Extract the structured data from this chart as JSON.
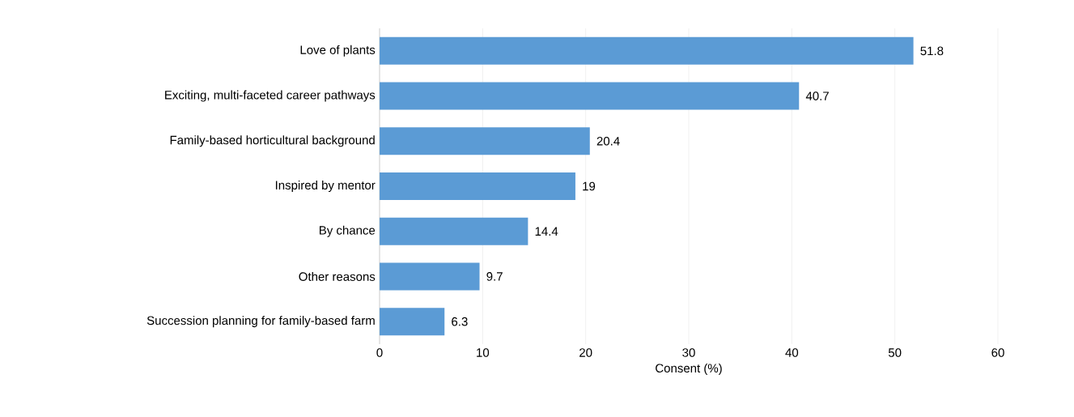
{
  "chart_data": {
    "type": "bar",
    "orientation": "horizontal",
    "xlabel": "Consent (%)",
    "categories": [
      "Love of plants",
      "Exciting, multi-faceted career pathways",
      "Family-based horticultural background",
      "Inspired by mentor",
      "By chance",
      "Other reasons",
      "Succession planning for family-based farm"
    ],
    "values": [
      51.8,
      40.7,
      20.4,
      19,
      14.4,
      9.7,
      6.3
    ],
    "color": "#5b9bd5",
    "xlim": [
      0,
      60
    ],
    "xticks": [
      0,
      10,
      20,
      30,
      40,
      50,
      60
    ],
    "grid": "x",
    "data_labels": true
  }
}
